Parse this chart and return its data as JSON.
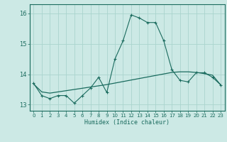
{
  "xlabel": "Humidex (Indice chaleur)",
  "bg_color": "#cce9e5",
  "line_color": "#1a6b5e",
  "grid_color": "#aad4ce",
  "x": [
    0,
    1,
    2,
    3,
    4,
    5,
    6,
    7,
    8,
    9,
    10,
    11,
    12,
    13,
    14,
    15,
    16,
    17,
    18,
    19,
    20,
    21,
    22,
    23
  ],
  "y_line1": [
    13.7,
    13.3,
    13.2,
    13.3,
    13.3,
    13.05,
    13.3,
    13.55,
    13.9,
    13.4,
    14.5,
    15.1,
    15.95,
    15.85,
    15.7,
    15.7,
    15.1,
    14.15,
    13.8,
    13.75,
    14.05,
    14.05,
    13.9,
    13.65
  ],
  "y_line2": [
    13.68,
    13.42,
    13.38,
    13.42,
    13.46,
    13.5,
    13.54,
    13.58,
    13.62,
    13.66,
    13.71,
    13.76,
    13.81,
    13.86,
    13.91,
    13.96,
    14.01,
    14.06,
    14.08,
    14.08,
    14.06,
    14.02,
    13.97,
    13.65
  ],
  "ylim": [
    12.8,
    16.3
  ],
  "xlim": [
    -0.5,
    23.5
  ],
  "yticks": [
    13,
    14,
    15,
    16
  ],
  "xticks": [
    0,
    1,
    2,
    3,
    4,
    5,
    6,
    7,
    8,
    9,
    10,
    11,
    12,
    13,
    14,
    15,
    16,
    17,
    18,
    19,
    20,
    21,
    22,
    23
  ]
}
